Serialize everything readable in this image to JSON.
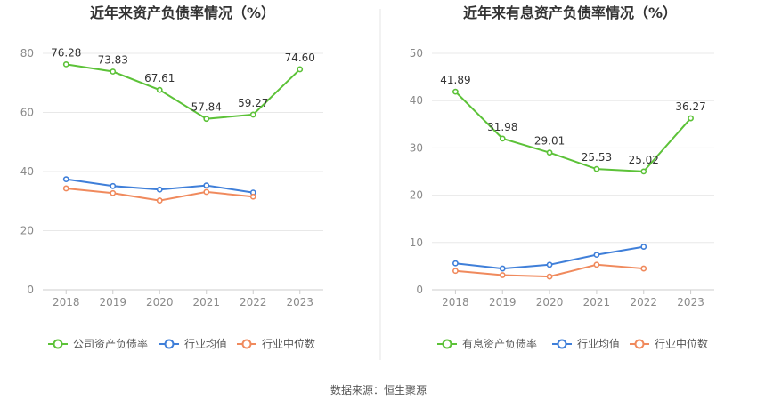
{
  "source_text": "数据来源：恒生聚源",
  "chart_data": [
    {
      "type": "line",
      "title": "近年来资产负债率情况（%）",
      "categories": [
        "2018",
        "2019",
        "2020",
        "2021",
        "2022",
        "2023"
      ],
      "ylim": [
        0,
        80
      ],
      "yticks": [
        0,
        20,
        40,
        60,
        80
      ],
      "grid": true,
      "legend_position": "bottom",
      "series": [
        {
          "name": "公司资产负债率",
          "color": "#5cc238",
          "values": [
            76.28,
            73.83,
            67.61,
            57.84,
            59.27,
            74.6
          ],
          "labels": [
            "76.28",
            "73.83",
            "67.61",
            "57.84",
            "59.27",
            "74.60"
          ],
          "show_labels": true
        },
        {
          "name": "行业均值",
          "color": "#3f7fd9",
          "values": [
            37.4,
            35.1,
            33.9,
            35.3,
            32.9,
            null
          ],
          "show_labels": false
        },
        {
          "name": "行业中位数",
          "color": "#f08a5d",
          "values": [
            34.3,
            32.7,
            30.2,
            33.1,
            31.5,
            null
          ],
          "show_labels": false
        }
      ]
    },
    {
      "type": "line",
      "title": "近年来有息资产负债率情况（%）",
      "categories": [
        "2018",
        "2019",
        "2020",
        "2021",
        "2022",
        "2023"
      ],
      "ylim": [
        0,
        50
      ],
      "yticks": [
        0,
        10,
        20,
        30,
        40,
        50
      ],
      "grid": true,
      "legend_position": "bottom",
      "series": [
        {
          "name": "有息资产负债率",
          "color": "#5cc238",
          "values": [
            41.89,
            31.98,
            29.01,
            25.53,
            25.02,
            36.27
          ],
          "labels": [
            "41.89",
            "31.98",
            "29.01",
            "25.53",
            "25.02",
            "36.27"
          ],
          "show_labels": true
        },
        {
          "name": "行业均值",
          "color": "#3f7fd9",
          "values": [
            5.6,
            4.5,
            5.3,
            7.4,
            9.1,
            null
          ],
          "show_labels": false
        },
        {
          "name": "行业中位数",
          "color": "#f08a5d",
          "values": [
            4.0,
            3.1,
            2.8,
            5.3,
            4.5,
            null
          ],
          "show_labels": false
        }
      ]
    }
  ]
}
